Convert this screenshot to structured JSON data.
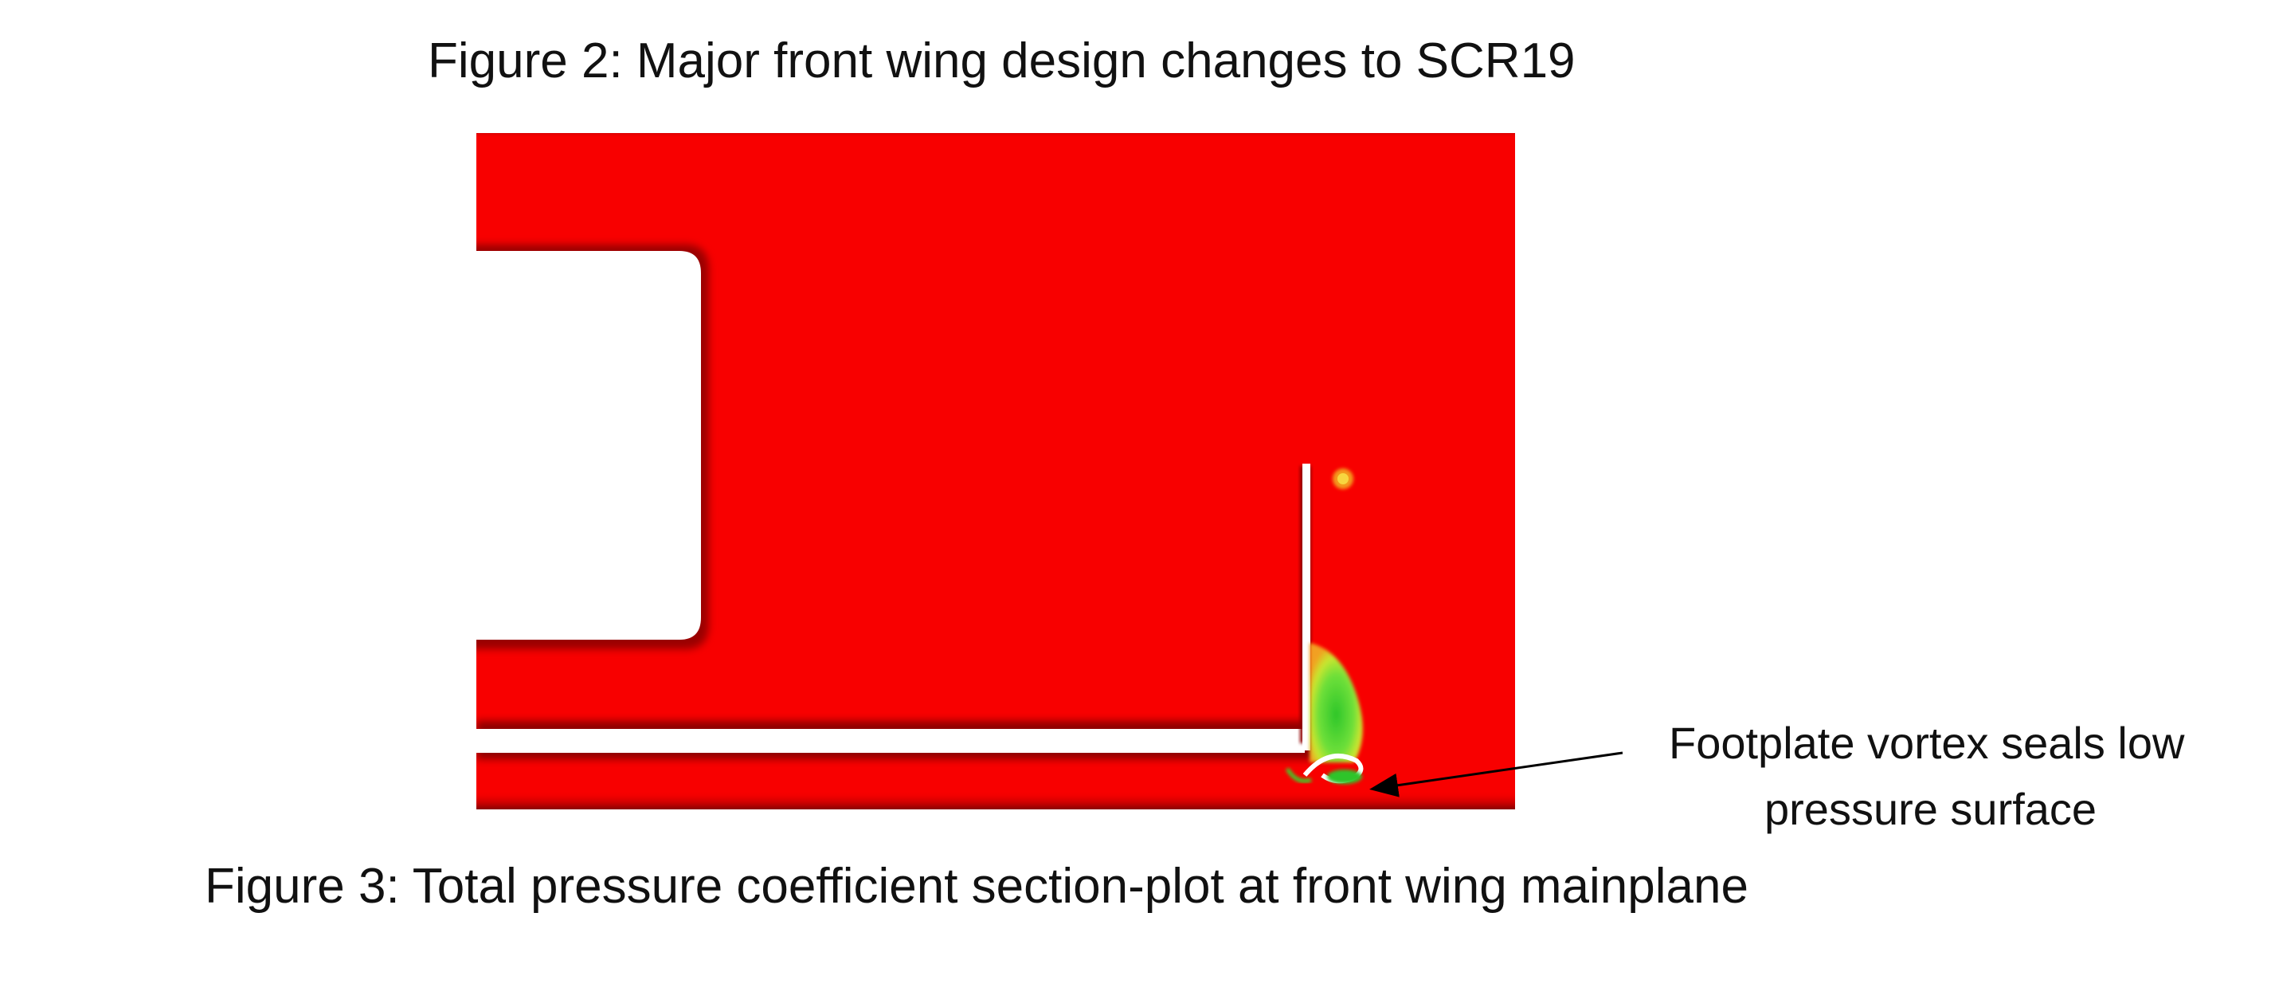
{
  "figure2": {
    "caption": "Figure 2: Major front wing design changes to SCR19"
  },
  "figure3": {
    "caption": "Figure 3: Total pressure coefficient section-plot at front wing mainplane",
    "annotation": {
      "line1": "Footplate vortex seals low",
      "line2": "pressure surface"
    },
    "colors": {
      "freestream": "#f80000",
      "low_total_pressure": "#3bd12a",
      "boundary": "#ffffff"
    }
  }
}
